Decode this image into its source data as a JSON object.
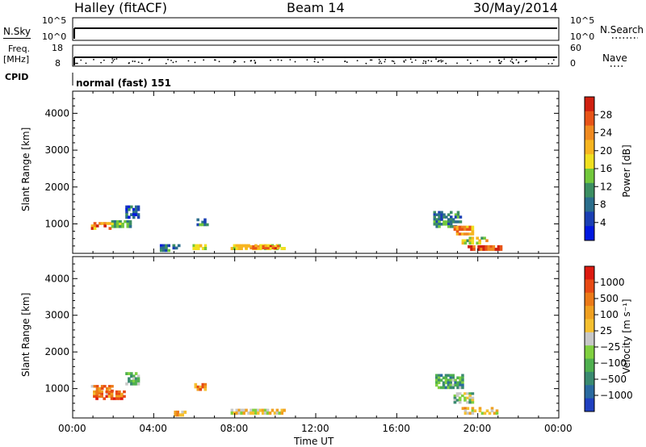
{
  "header": {
    "title": "Halley (fitACF)",
    "beam": "Beam 14",
    "date": "30/May/2014"
  },
  "summary_panels": {
    "nsky": {
      "label": "N.Sky",
      "left_ticks": [
        "10^5",
        "10^0"
      ],
      "right_label": "N.Search",
      "right_ticks": [
        "10^5",
        "10^0"
      ]
    },
    "freq": {
      "label_line1": "Freq.",
      "label_line2": "[MHz]",
      "left_ticks": [
        "18",
        "8"
      ],
      "right_label": "Nave",
      "right_ticks": [
        "60",
        "0"
      ]
    },
    "cpid": {
      "label": "CPID",
      "text": "normal (fast) 151"
    }
  },
  "chart_data": [
    {
      "type": "heatmap",
      "title": "",
      "quantity": "Power",
      "xlabel": "",
      "ylabel": "Slant Range [km]",
      "ylim": [
        200,
        4600
      ],
      "yticks": [
        "1000",
        "2000",
        "3000",
        "4000"
      ],
      "xticks": [
        "00:00",
        "04:00",
        "08:00",
        "12:00",
        "16:00",
        "20:00",
        "00:00"
      ],
      "colorbar": {
        "label": "Power [dB]",
        "ticks": [
          "4",
          "8",
          "12",
          "16",
          "20",
          "24",
          "28"
        ],
        "colors": [
          "#0018e0",
          "#1a3fb4",
          "#2b6e8c",
          "#3c8f62",
          "#72c83c",
          "#f0e020",
          "#f7b520",
          "#f08a20",
          "#e85418",
          "#d02010"
        ]
      },
      "echo_regions": [
        {
          "hours": [
            0.9,
            1.9
          ],
          "range_km": [
            850,
            1050
          ],
          "level": 0.75
        },
        {
          "hours": [
            1.9,
            2.9
          ],
          "range_km": [
            900,
            1100
          ],
          "level": 0.35
        },
        {
          "hours": [
            2.6,
            3.3
          ],
          "range_km": [
            1150,
            1500
          ],
          "level": 0.2
        },
        {
          "hours": [
            4.3,
            5.3
          ],
          "range_km": [
            250,
            450
          ],
          "level": 0.25
        },
        {
          "hours": [
            5.8,
            6.6
          ],
          "range_km": [
            300,
            450
          ],
          "level": 0.5
        },
        {
          "hours": [
            6.0,
            6.7
          ],
          "range_km": [
            950,
            1150
          ],
          "level": 0.3
        },
        {
          "hours": [
            7.8,
            10.5
          ],
          "range_km": [
            300,
            450
          ],
          "level": 0.55
        },
        {
          "hours": [
            8.5,
            10.2
          ],
          "range_km": [
            320,
            420
          ],
          "level": 0.75
        },
        {
          "hours": [
            17.8,
            19.2
          ],
          "range_km": [
            900,
            1350
          ],
          "level": 0.3
        },
        {
          "hours": [
            18.8,
            19.8
          ],
          "range_km": [
            700,
            950
          ],
          "level": 0.7
        },
        {
          "hours": [
            19.2,
            20.5
          ],
          "range_km": [
            450,
            650
          ],
          "level": 0.55
        },
        {
          "hours": [
            19.5,
            21.2
          ],
          "range_km": [
            280,
            420
          ],
          "level": 0.9
        }
      ]
    },
    {
      "type": "heatmap",
      "title": "",
      "quantity": "Velocity",
      "xlabel": "Time UT",
      "ylabel": "Slant Range [km]",
      "ylim": [
        200,
        4600
      ],
      "yticks": [
        "1000",
        "2000",
        "3000",
        "4000"
      ],
      "xticks": [
        "00:00",
        "04:00",
        "08:00",
        "12:00",
        "16:00",
        "20:00",
        "00:00"
      ],
      "colorbar": {
        "label": "Velocity [m s⁻¹]",
        "ticks": [
          "1000",
          "500",
          "100",
          "25",
          "−25",
          "−100",
          "−500",
          "−1000"
        ],
        "colors": [
          "#2040c0",
          "#2a6aa0",
          "#3a8a70",
          "#4fb04f",
          "#80d040",
          "#c8c8c8",
          "#f5c030",
          "#f0a020",
          "#ec7a18",
          "#e84a14",
          "#dd1a10"
        ]
      },
      "echo_regions": [
        {
          "hours": [
            0.9,
            2.0
          ],
          "range_km": [
            850,
            1100
          ],
          "level": 0.7
        },
        {
          "hours": [
            1.0,
            2.6
          ],
          "range_km": [
            700,
            950
          ],
          "level": 0.78
        },
        {
          "hours": [
            2.6,
            3.3
          ],
          "range_km": [
            1100,
            1450
          ],
          "level": 0.35
        },
        {
          "hours": [
            5.0,
            5.6
          ],
          "range_km": [
            250,
            400
          ],
          "level": 0.62
        },
        {
          "hours": [
            6.0,
            6.6
          ],
          "range_km": [
            950,
            1150
          ],
          "level": 0.75
        },
        {
          "hours": [
            7.8,
            10.5
          ],
          "range_km": [
            300,
            450
          ],
          "level": 0.55
        },
        {
          "hours": [
            17.9,
            19.3
          ],
          "range_km": [
            1000,
            1400
          ],
          "level": 0.3
        },
        {
          "hours": [
            18.8,
            19.8
          ],
          "range_km": [
            600,
            900
          ],
          "level": 0.4
        },
        {
          "hours": [
            19.2,
            21.0
          ],
          "range_km": [
            300,
            500
          ],
          "level": 0.58
        }
      ]
    }
  ]
}
